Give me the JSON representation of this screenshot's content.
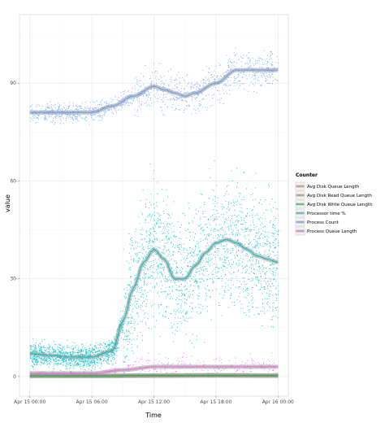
{
  "chart_data": {
    "type": "scatter",
    "xlabel": "Time",
    "ylabel": "value",
    "ylim": [
      -6,
      111
    ],
    "y_ticks": [
      0,
      30,
      60,
      90
    ],
    "x_ticks": [
      "Apr 15 00:00",
      "Apr 15 06:00",
      "Apr 15 12:00",
      "Apr 15 18:00",
      "Apr 16 00:00"
    ],
    "xlim_hours": [
      -1,
      25
    ],
    "grid": true,
    "smoothers": true,
    "legend": {
      "title": "Counter",
      "position": "right"
    },
    "series": [
      {
        "name": "Avg Disk Queue Length",
        "color": "#F8766D",
        "smooth": [
          [
            0,
            0.3
          ],
          [
            6,
            0.3
          ],
          [
            12,
            0.4
          ],
          [
            18,
            0.5
          ],
          [
            24,
            0.4
          ]
        ]
      },
      {
        "name": "Avg Disk Read Queue Length",
        "color": "#B79F00",
        "smooth": [
          [
            0,
            0.1
          ],
          [
            6,
            0.1
          ],
          [
            12,
            0.2
          ],
          [
            18,
            0.3
          ],
          [
            24,
            0.2
          ]
        ]
      },
      {
        "name": "Avg Disk Write Queue Length",
        "color": "#00BA38",
        "smooth": [
          [
            0,
            0.2
          ],
          [
            6,
            0.2
          ],
          [
            12,
            0.3
          ],
          [
            18,
            0.3
          ],
          [
            24,
            0.3
          ]
        ]
      },
      {
        "name": "Processor time %",
        "color": "#00BFC4",
        "smooth": [
          [
            0,
            7
          ],
          [
            2,
            6.5
          ],
          [
            4,
            6
          ],
          [
            6,
            6
          ],
          [
            8,
            8
          ],
          [
            9,
            17
          ],
          [
            10,
            27
          ],
          [
            11,
            35
          ],
          [
            12,
            39
          ],
          [
            13,
            36
          ],
          [
            14,
            30
          ],
          [
            15,
            30
          ],
          [
            16,
            34
          ],
          [
            17,
            38
          ],
          [
            18,
            41
          ],
          [
            19,
            42
          ],
          [
            20,
            41
          ],
          [
            21,
            39
          ],
          [
            22,
            37
          ],
          [
            23,
            36
          ],
          [
            24,
            35
          ]
        ]
      },
      {
        "name": "Process Count",
        "color": "#619CFF",
        "smooth": [
          [
            0,
            81
          ],
          [
            3,
            81
          ],
          [
            6,
            81
          ],
          [
            8,
            83
          ],
          [
            10,
            86
          ],
          [
            12,
            89
          ],
          [
            13,
            88
          ],
          [
            14,
            87
          ],
          [
            15,
            86
          ],
          [
            16,
            87
          ],
          [
            18,
            90
          ],
          [
            20,
            94
          ],
          [
            22,
            94
          ],
          [
            24,
            94
          ]
        ]
      },
      {
        "name": "Process Queue Length",
        "color": "#F564E3",
        "smooth": [
          [
            0,
            1
          ],
          [
            6,
            1
          ],
          [
            9,
            2
          ],
          [
            12,
            3
          ],
          [
            18,
            3
          ],
          [
            24,
            3
          ]
        ]
      }
    ]
  }
}
